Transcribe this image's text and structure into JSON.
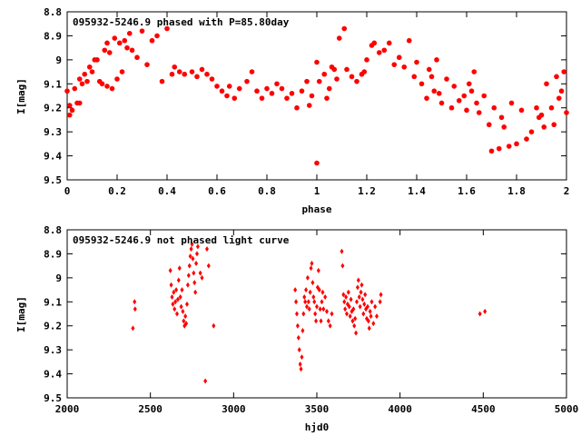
{
  "chart_data": [
    {
      "type": "scatter",
      "title": "095932-5246.9 phased with P=85.80day",
      "xlabel": "phase",
      "ylabel": "I[mag]",
      "xlim": [
        0,
        2
      ],
      "ylim": [
        9.5,
        8.8
      ],
      "y_inverted": true,
      "xticks": [
        "0",
        "0.2",
        "0.4",
        "0.6",
        "0.8",
        "1",
        "1.2",
        "1.4",
        "1.6",
        "1.8",
        "2"
      ],
      "yticks": [
        "8.8",
        "8.9",
        "9",
        "9.1",
        "9.2",
        "9.3",
        "9.4",
        "9.5"
      ],
      "grid": false,
      "color": "#ff0000",
      "marker": "filled-circle",
      "series": [
        {
          "points": [
            [
              0.0,
              9.13
            ],
            [
              0.01,
              9.19
            ],
            [
              0.01,
              9.23
            ],
            [
              0.02,
              9.21
            ],
            [
              0.03,
              9.12
            ],
            [
              0.04,
              9.18
            ],
            [
              0.05,
              9.08
            ],
            [
              0.05,
              9.18
            ],
            [
              0.06,
              9.1
            ],
            [
              0.07,
              9.06
            ],
            [
              0.08,
              9.09
            ],
            [
              0.09,
              9.03
            ],
            [
              0.1,
              9.05
            ],
            [
              0.11,
              9.0
            ],
            [
              0.12,
              9.0
            ],
            [
              0.13,
              9.09
            ],
            [
              0.14,
              9.1
            ],
            [
              0.15,
              8.96
            ],
            [
              0.16,
              8.93
            ],
            [
              0.16,
              9.11
            ],
            [
              0.17,
              8.97
            ],
            [
              0.18,
              9.12
            ],
            [
              0.19,
              8.91
            ],
            [
              0.2,
              9.08
            ],
            [
              0.21,
              8.93
            ],
            [
              0.22,
              9.05
            ],
            [
              0.23,
              8.92
            ],
            [
              0.24,
              8.95
            ],
            [
              0.25,
              8.89
            ],
            [
              0.26,
              8.96
            ],
            [
              0.28,
              8.99
            ],
            [
              0.3,
              8.88
            ],
            [
              0.32,
              9.02
            ],
            [
              0.34,
              8.92
            ],
            [
              0.36,
              8.9
            ],
            [
              0.38,
              9.09
            ],
            [
              0.4,
              8.87
            ],
            [
              0.42,
              9.06
            ],
            [
              0.43,
              9.03
            ],
            [
              0.45,
              9.05
            ],
            [
              0.47,
              9.06
            ],
            [
              0.5,
              9.05
            ],
            [
              0.52,
              9.07
            ],
            [
              0.54,
              9.04
            ],
            [
              0.56,
              9.06
            ],
            [
              0.58,
              9.08
            ],
            [
              0.6,
              9.11
            ],
            [
              0.62,
              9.13
            ],
            [
              0.64,
              9.15
            ],
            [
              0.65,
              9.11
            ],
            [
              0.67,
              9.16
            ],
            [
              0.69,
              9.12
            ],
            [
              0.72,
              9.09
            ],
            [
              0.74,
              9.05
            ],
            [
              0.76,
              9.13
            ],
            [
              0.78,
              9.16
            ],
            [
              0.8,
              9.12
            ],
            [
              0.82,
              9.14
            ],
            [
              0.84,
              9.1
            ],
            [
              0.86,
              9.12
            ],
            [
              0.88,
              9.16
            ],
            [
              0.9,
              9.14
            ],
            [
              0.92,
              9.2
            ],
            [
              0.94,
              9.13
            ],
            [
              0.96,
              9.09
            ],
            [
              0.97,
              9.19
            ],
            [
              0.98,
              9.15
            ],
            [
              1.0,
              9.01
            ],
            [
              1.0,
              9.43
            ],
            [
              1.01,
              9.09
            ],
            [
              1.03,
              9.06
            ],
            [
              1.04,
              9.16
            ],
            [
              1.05,
              9.12
            ],
            [
              1.06,
              9.03
            ],
            [
              1.07,
              9.04
            ],
            [
              1.08,
              9.08
            ],
            [
              1.09,
              8.91
            ],
            [
              1.11,
              8.87
            ],
            [
              1.12,
              9.04
            ],
            [
              1.14,
              9.07
            ],
            [
              1.16,
              9.09
            ],
            [
              1.18,
              9.06
            ],
            [
              1.19,
              9.05
            ],
            [
              1.2,
              9.0
            ],
            [
              1.22,
              8.94
            ],
            [
              1.23,
              8.93
            ],
            [
              1.25,
              8.97
            ],
            [
              1.27,
              8.96
            ],
            [
              1.29,
              8.93
            ],
            [
              1.31,
              9.02
            ],
            [
              1.33,
              8.99
            ],
            [
              1.35,
              9.03
            ],
            [
              1.37,
              8.92
            ],
            [
              1.39,
              9.07
            ],
            [
              1.4,
              9.01
            ],
            [
              1.42,
              9.1
            ],
            [
              1.44,
              9.16
            ],
            [
              1.45,
              9.04
            ],
            [
              1.46,
              9.07
            ],
            [
              1.47,
              9.13
            ],
            [
              1.48,
              9.0
            ],
            [
              1.49,
              9.14
            ],
            [
              1.5,
              9.18
            ],
            [
              1.52,
              9.08
            ],
            [
              1.54,
              9.2
            ],
            [
              1.55,
              9.11
            ],
            [
              1.57,
              9.17
            ],
            [
              1.59,
              9.15
            ],
            [
              1.6,
              9.21
            ],
            [
              1.61,
              9.1
            ],
            [
              1.62,
              9.13
            ],
            [
              1.63,
              9.05
            ],
            [
              1.64,
              9.18
            ],
            [
              1.65,
              9.22
            ],
            [
              1.67,
              9.15
            ],
            [
              1.69,
              9.27
            ],
            [
              1.7,
              9.38
            ],
            [
              1.71,
              9.2
            ],
            [
              1.73,
              9.37
            ],
            [
              1.74,
              9.24
            ],
            [
              1.75,
              9.28
            ],
            [
              1.77,
              9.36
            ],
            [
              1.78,
              9.18
            ],
            [
              1.8,
              9.35
            ],
            [
              1.82,
              9.21
            ],
            [
              1.84,
              9.33
            ],
            [
              1.86,
              9.3
            ],
            [
              1.88,
              9.2
            ],
            [
              1.89,
              9.24
            ],
            [
              1.9,
              9.23
            ],
            [
              1.91,
              9.28
            ],
            [
              1.92,
              9.1
            ],
            [
              1.94,
              9.2
            ],
            [
              1.95,
              9.27
            ],
            [
              1.96,
              9.07
            ],
            [
              1.97,
              9.16
            ],
            [
              1.98,
              9.13
            ],
            [
              1.99,
              9.05
            ],
            [
              2.0,
              9.22
            ]
          ]
        }
      ]
    },
    {
      "type": "scatter",
      "title": "095932-5246.9 not phased light curve",
      "xlabel": "hjd0",
      "ylabel": "I[mag]",
      "xlim": [
        2000,
        5000
      ],
      "ylim": [
        9.5,
        8.8
      ],
      "y_inverted": true,
      "xticks": [
        "2000",
        "2500",
        "3000",
        "3500",
        "4000",
        "4500",
        "5000"
      ],
      "yticks": [
        "8.8",
        "8.9",
        "9",
        "9.1",
        "9.2",
        "9.3",
        "9.4",
        "9.5"
      ],
      "grid": false,
      "color": "#ff0000",
      "marker": "small-diamond",
      "series": [
        {
          "points": [
            [
              2395,
              9.21
            ],
            [
              2405,
              9.1
            ],
            [
              2408,
              9.13
            ],
            [
              2620,
              8.97
            ],
            [
              2625,
              9.03
            ],
            [
              2630,
              9.08
            ],
            [
              2635,
              9.11
            ],
            [
              2640,
              9.06
            ],
            [
              2645,
              9.13
            ],
            [
              2650,
              9.1
            ],
            [
              2655,
              9.05
            ],
            [
              2660,
              9.15
            ],
            [
              2665,
              9.09
            ],
            [
              2670,
              9.01
            ],
            [
              2675,
              8.96
            ],
            [
              2680,
              9.08
            ],
            [
              2685,
              9.12
            ],
            [
              2690,
              9.05
            ],
            [
              2695,
              9.14
            ],
            [
              2700,
              9.18
            ],
            [
              2705,
              9.2
            ],
            [
              2710,
              9.16
            ],
            [
              2715,
              9.19
            ],
            [
              2720,
              9.11
            ],
            [
              2725,
              9.03
            ],
            [
              2730,
              8.99
            ],
            [
              2735,
              8.95
            ],
            [
              2740,
              8.91
            ],
            [
              2745,
              8.88
            ],
            [
              2750,
              8.86
            ],
            [
              2755,
              8.92
            ],
            [
              2760,
              8.98
            ],
            [
              2765,
              9.02
            ],
            [
              2770,
              9.06
            ],
            [
              2775,
              8.94
            ],
            [
              2780,
              8.9
            ],
            [
              2785,
              8.87
            ],
            [
              2800,
              8.98
            ],
            [
              2810,
              9.0
            ],
            [
              2830,
              9.43
            ],
            [
              2840,
              8.88
            ],
            [
              2850,
              8.95
            ],
            [
              2880,
              9.2
            ],
            [
              3370,
              9.05
            ],
            [
              3375,
              9.1
            ],
            [
              3380,
              9.15
            ],
            [
              3385,
              9.2
            ],
            [
              3390,
              9.25
            ],
            [
              3395,
              9.3
            ],
            [
              3400,
              9.36
            ],
            [
              3405,
              9.38
            ],
            [
              3410,
              9.33
            ],
            [
              3415,
              9.22
            ],
            [
              3420,
              9.15
            ],
            [
              3425,
              9.08
            ],
            [
              3430,
              9.1
            ],
            [
              3435,
              9.05
            ],
            [
              3440,
              9.12
            ],
            [
              3445,
              9.0
            ],
            [
              3450,
              9.1
            ],
            [
              3455,
              9.13
            ],
            [
              3460,
              9.06
            ],
            [
              3465,
              8.96
            ],
            [
              3470,
              8.94
            ],
            [
              3475,
              9.02
            ],
            [
              3480,
              9.08
            ],
            [
              3485,
              9.1
            ],
            [
              3490,
              9.15
            ],
            [
              3495,
              9.18
            ],
            [
              3500,
              9.12
            ],
            [
              3505,
              9.04
            ],
            [
              3510,
              8.97
            ],
            [
              3515,
              9.05
            ],
            [
              3520,
              9.13
            ],
            [
              3525,
              9.18
            ],
            [
              3530,
              9.1
            ],
            [
              3535,
              9.06
            ],
            [
              3540,
              9.13
            ],
            [
              3550,
              9.08
            ],
            [
              3560,
              9.14
            ],
            [
              3570,
              9.18
            ],
            [
              3580,
              9.2
            ],
            [
              3590,
              9.15
            ],
            [
              3650,
              8.89
            ],
            [
              3655,
              8.95
            ],
            [
              3660,
              9.07
            ],
            [
              3665,
              9.1
            ],
            [
              3670,
              9.13
            ],
            [
              3675,
              9.08
            ],
            [
              3680,
              9.15
            ],
            [
              3685,
              9.11
            ],
            [
              3690,
              9.06
            ],
            [
              3695,
              9.12
            ],
            [
              3700,
              9.16
            ],
            [
              3705,
              9.09
            ],
            [
              3710,
              9.14
            ],
            [
              3715,
              9.18
            ],
            [
              3720,
              9.13
            ],
            [
              3725,
              9.2
            ],
            [
              3730,
              9.17
            ],
            [
              3735,
              9.23
            ],
            [
              3740,
              9.1
            ],
            [
              3745,
              9.04
            ],
            [
              3750,
              9.01
            ],
            [
              3755,
              9.08
            ],
            [
              3760,
              9.12
            ],
            [
              3765,
              9.06
            ],
            [
              3770,
              9.03
            ],
            [
              3775,
              9.09
            ],
            [
              3780,
              9.15
            ],
            [
              3785,
              9.11
            ],
            [
              3790,
              9.07
            ],
            [
              3795,
              9.13
            ],
            [
              3800,
              9.17
            ],
            [
              3805,
              9.12
            ],
            [
              3810,
              9.18
            ],
            [
              3815,
              9.21
            ],
            [
              3820,
              9.14
            ],
            [
              3825,
              9.16
            ],
            [
              3830,
              9.1
            ],
            [
              3840,
              9.19
            ],
            [
              3850,
              9.12
            ],
            [
              3860,
              9.16
            ],
            [
              3880,
              9.1
            ],
            [
              3885,
              9.07
            ],
            [
              4480,
              9.15
            ],
            [
              4510,
              9.14
            ]
          ]
        }
      ]
    }
  ]
}
